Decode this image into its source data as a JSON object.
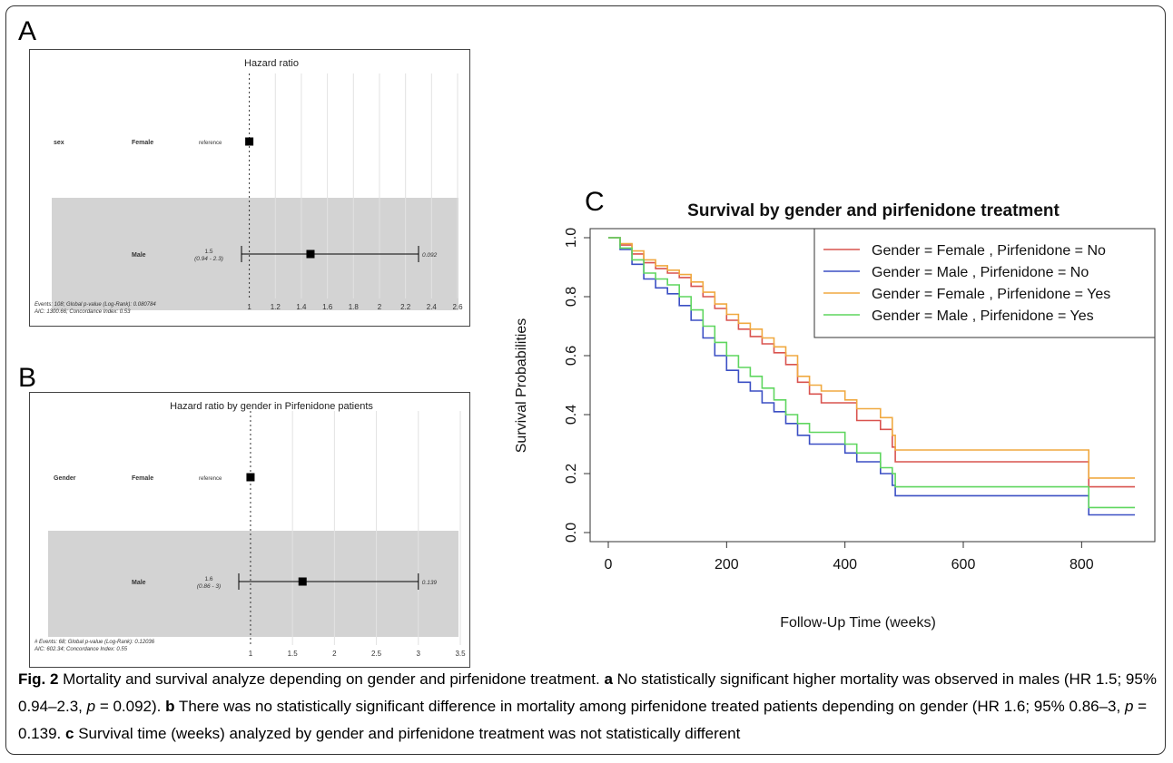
{
  "chart_data": [
    {
      "panel": "A",
      "type": "forest",
      "title": "Hazard ratio",
      "variable": "sex",
      "rows": [
        {
          "level": "Female",
          "label": "reference",
          "hr": 1.0,
          "ci": null,
          "p": null
        },
        {
          "level": "Male",
          "hr_label": "1.5",
          "ci_label": "(0.94 - 2.3)",
          "hr": 1.47,
          "ci": [
            0.94,
            2.3
          ],
          "p": "0.092"
        }
      ],
      "ticks": [
        "1",
        "1.2",
        "1.4",
        "1.6",
        "1.8",
        "2",
        "2.2",
        "2.4",
        "2.6"
      ],
      "xlim": [
        0.94,
        2.6
      ],
      "footer": [
        "Events: 108; Global p-value (Log-Rank): 0.080784",
        "AIC: 1300.66; Concordance Index: 0.53"
      ]
    },
    {
      "panel": "B",
      "type": "forest",
      "title": "Hazard ratio by gender in Pirfenidone patients",
      "variable": "Gender",
      "rows": [
        {
          "level": "Female",
          "label": "reference",
          "hr": 1.0,
          "ci": null,
          "p": null
        },
        {
          "level": "Male",
          "hr_label": "1.6",
          "ci_label": "(0.86 - 3)",
          "hr": 1.62,
          "ci": [
            0.86,
            3.0
          ],
          "p": "0.139"
        }
      ],
      "ticks": [
        "1",
        "1.5",
        "2",
        "2.5",
        "3",
        "3.5"
      ],
      "xlim": [
        0.86,
        3.5
      ],
      "footer": [
        "# Events: 68; Global p-value (Log-Rank): 0.12036",
        "AIC: 602.34; Concordance Index: 0.55"
      ]
    },
    {
      "panel": "C",
      "type": "line",
      "title": "Survival by gender and pirfenidone treatment",
      "xlabel": "Follow-Up Time (weeks)",
      "ylabel": "Survival Probabilities",
      "xlim": [
        0,
        890
      ],
      "ylim": [
        0,
        1.0
      ],
      "xticks": [
        "0",
        "200",
        "400",
        "600",
        "800"
      ],
      "yticks": [
        "0.0",
        "0.2",
        "0.4",
        "0.6",
        "0.8",
        "1.0"
      ],
      "legend_position": "top-right",
      "series": [
        {
          "name": "Gender = Female , Pirfenidone =  No",
          "color": "#d9534f",
          "x": [
            0,
            20,
            40,
            60,
            80,
            100,
            120,
            140,
            160,
            180,
            200,
            220,
            240,
            260,
            280,
            300,
            320,
            340,
            360,
            400,
            420,
            460,
            480,
            485,
            600,
            810,
            812,
            890
          ],
          "y": [
            1.0,
            0.975,
            0.945,
            0.915,
            0.895,
            0.88,
            0.865,
            0.835,
            0.8,
            0.76,
            0.72,
            0.69,
            0.665,
            0.64,
            0.61,
            0.57,
            0.51,
            0.47,
            0.44,
            0.44,
            0.38,
            0.35,
            0.29,
            0.24,
            0.24,
            0.24,
            0.155,
            0.155
          ]
        },
        {
          "name": "Gender = Male , Pirfenidone =  No",
          "color": "#3b4fc4",
          "x": [
            0,
            20,
            40,
            60,
            80,
            100,
            120,
            140,
            160,
            180,
            200,
            220,
            240,
            260,
            280,
            300,
            320,
            340,
            360,
            400,
            420,
            460,
            480,
            485,
            600,
            810,
            812,
            890
          ],
          "y": [
            1.0,
            0.96,
            0.91,
            0.86,
            0.83,
            0.81,
            0.77,
            0.72,
            0.66,
            0.6,
            0.55,
            0.51,
            0.48,
            0.44,
            0.41,
            0.37,
            0.33,
            0.3,
            0.3,
            0.27,
            0.24,
            0.2,
            0.16,
            0.125,
            0.125,
            0.125,
            0.06,
            0.06
          ]
        },
        {
          "name": "Gender = Female , Pirfenidone =  Yes",
          "color": "#f0a940",
          "x": [
            0,
            20,
            40,
            60,
            80,
            100,
            120,
            140,
            160,
            180,
            200,
            220,
            240,
            260,
            280,
            300,
            320,
            340,
            360,
            400,
            420,
            460,
            480,
            485,
            600,
            810,
            812,
            890
          ],
          "y": [
            1.0,
            0.98,
            0.955,
            0.925,
            0.905,
            0.89,
            0.875,
            0.85,
            0.815,
            0.775,
            0.74,
            0.71,
            0.69,
            0.66,
            0.63,
            0.6,
            0.53,
            0.5,
            0.48,
            0.45,
            0.42,
            0.39,
            0.33,
            0.28,
            0.28,
            0.28,
            0.185,
            0.185
          ]
        },
        {
          "name": "Gender = Male , Pirfenidone =  Yes",
          "color": "#5fd65f",
          "x": [
            0,
            20,
            40,
            60,
            80,
            100,
            120,
            140,
            160,
            180,
            200,
            220,
            240,
            260,
            280,
            300,
            320,
            340,
            360,
            400,
            420,
            460,
            480,
            485,
            600,
            810,
            812,
            890
          ],
          "y": [
            1.0,
            0.965,
            0.925,
            0.88,
            0.86,
            0.84,
            0.8,
            0.755,
            0.7,
            0.645,
            0.6,
            0.56,
            0.53,
            0.49,
            0.45,
            0.4,
            0.37,
            0.34,
            0.34,
            0.3,
            0.27,
            0.22,
            0.2,
            0.155,
            0.155,
            0.155,
            0.085,
            0.085
          ]
        }
      ]
    }
  ],
  "panels": {
    "a": "A",
    "b": "B",
    "c": "C"
  },
  "caption": {
    "fig": "Fig. 2",
    "intro": " Mortality and survival analyze depending on gender and pirfenidone treatment. ",
    "a_letter": "a",
    "a_text1": " No statistically significant higher mortality was observed in males (HR 1.5; 95% 0.94–2.3, ",
    "a_p": "p",
    "a_text2": " = 0.092). ",
    "b_letter": "b",
    "b_text1": " There was no statistically significant difference in mortality among pirfenidone treated patients depending on gender (HR 1.6; 95% 0.86–3, ",
    "b_p": "p",
    "b_text2": " = 0.139. ",
    "c_letter": "c",
    "c_text": " Survival time (weeks) analyzed by gender and pirfenidone treatment was not statistically different"
  }
}
